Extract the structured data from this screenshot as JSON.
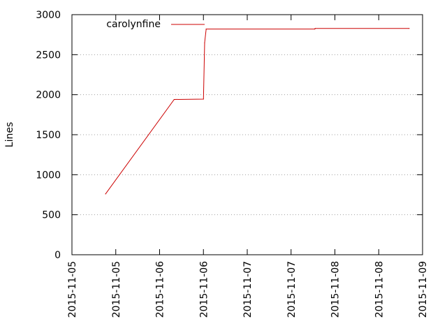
{
  "chart_data": {
    "type": "line",
    "title": "",
    "xlabel": "",
    "ylabel": "Lines",
    "grid": "horizontal dotted",
    "legend_position": "top-left",
    "x_tick_labels": [
      "2015-11-05",
      "2015-11-05",
      "2015-11-06",
      "2015-11-06",
      "2015-11-07",
      "2015-11-07",
      "2015-11-08",
      "2015-11-08",
      "2015-11-09"
    ],
    "xlim": [
      "2015-11-05 00:00",
      "2015-11-09 00:00"
    ],
    "y_ticks": [
      0,
      500,
      1000,
      1500,
      2000,
      2500,
      3000
    ],
    "ylim": [
      0,
      3000
    ],
    "series": [
      {
        "name": "carolynfine",
        "color": "#cc0000",
        "points": [
          {
            "x": "2015-11-05 09:12",
            "y": 760
          },
          {
            "x": "2015-11-06 04:00",
            "y": 1940
          },
          {
            "x": "2015-11-06 12:00",
            "y": 1945
          },
          {
            "x": "2015-11-06 12:20",
            "y": 2650
          },
          {
            "x": "2015-11-06 12:45",
            "y": 2820
          },
          {
            "x": "2015-11-07 18:30",
            "y": 2820
          },
          {
            "x": "2015-11-07 18:35",
            "y": 2828
          },
          {
            "x": "2015-11-08 20:20",
            "y": 2828
          }
        ]
      }
    ]
  }
}
